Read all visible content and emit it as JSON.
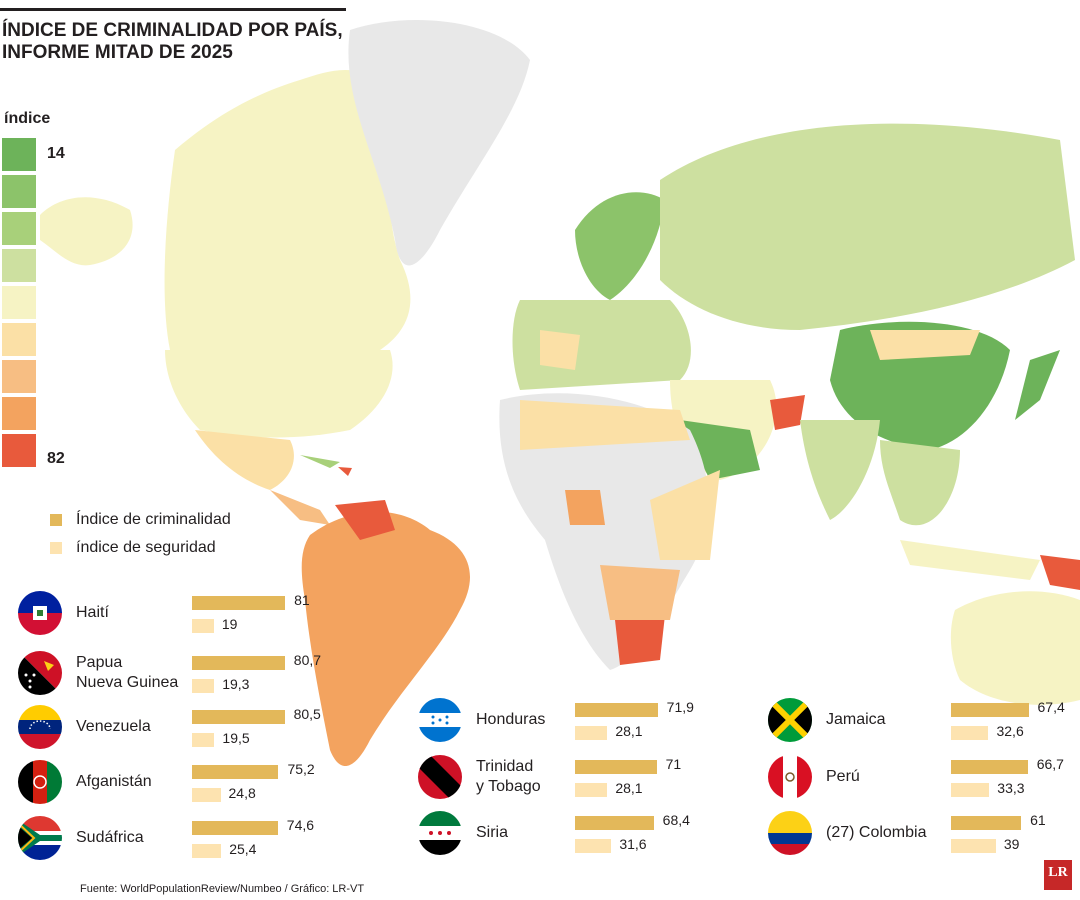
{
  "title_line1": "ÍNDICE DE CRIMINALIDAD POR PAÍS,",
  "title_line2": "INFORME MITAD DE 2025",
  "legend": {
    "title": "índice",
    "min": "14",
    "max": "82",
    "colors": [
      "#6db35a",
      "#8cc36a",
      "#a8d07a",
      "#cde0a0",
      "#f6f3c4",
      "#fbe0a6",
      "#f7be83",
      "#f3a35f",
      "#e85a3c"
    ]
  },
  "keys": {
    "crime": "Índice de criminalidad",
    "safety": "índice de seguridad",
    "crime_color": "#e3b85a",
    "safety_color": "#fde3b0"
  },
  "chart_data": {
    "type": "bar",
    "categories": [
      "Haití",
      "Papua Nueva Guinea",
      "Venezuela",
      "Afganistán",
      "Sudáfrica",
      "Honduras",
      "Trinidad y Tobago",
      "Siria",
      "Jamaica",
      "Perú",
      "(27) Colombia"
    ],
    "series": [
      {
        "name": "Índice de criminalidad",
        "values": [
          81,
          80.7,
          80.5,
          75.2,
          74.6,
          71.9,
          71,
          68.4,
          67.4,
          66.7,
          61
        ]
      },
      {
        "name": "índice de seguridad",
        "values": [
          19,
          19.3,
          19.5,
          24.8,
          25.4,
          28.1,
          28.1,
          31.6,
          32.6,
          33.3,
          39
        ]
      }
    ]
  },
  "countries": [
    {
      "name": [
        "Haití"
      ],
      "crime": "81",
      "safety": "19",
      "flag": "haiti-flag"
    },
    {
      "name": [
        "Papua",
        "Nueva Guinea"
      ],
      "crime": "80,7",
      "safety": "19,3",
      "flag": "papua-new-guinea-flag"
    },
    {
      "name": [
        "Venezuela"
      ],
      "crime": "80,5",
      "safety": "19,5",
      "flag": "venezuela-flag"
    },
    {
      "name": [
        "Afganistán"
      ],
      "crime": "75,2",
      "safety": "24,8",
      "flag": "afghanistan-flag"
    },
    {
      "name": [
        "Sudáfrica"
      ],
      "crime": "74,6",
      "safety": "25,4",
      "flag": "south-africa-flag"
    },
    {
      "name": [
        "Honduras"
      ],
      "crime": "71,9",
      "safety": "28,1",
      "flag": "honduras-flag"
    },
    {
      "name": [
        "Trinidad",
        "y Tobago"
      ],
      "crime": "71",
      "safety": "28,1",
      "flag": "trinidad-tobago-flag"
    },
    {
      "name": [
        "Siria"
      ],
      "crime": "68,4",
      "safety": "31,6",
      "flag": "syria-flag"
    },
    {
      "name": [
        "Jamaica"
      ],
      "crime": "67,4",
      "safety": "32,6",
      "flag": "jamaica-flag"
    },
    {
      "name": [
        "Perú"
      ],
      "crime": "66,7",
      "safety": "33,3",
      "flag": "peru-flag"
    },
    {
      "name": [
        "(27) Colombia"
      ],
      "crime": "61",
      "safety": "39",
      "flag": "colombia-flag"
    }
  ],
  "source": "Fuente: WorldPopulationReview/Numbeo / Gráfico: LR-VT",
  "logo": "LR"
}
